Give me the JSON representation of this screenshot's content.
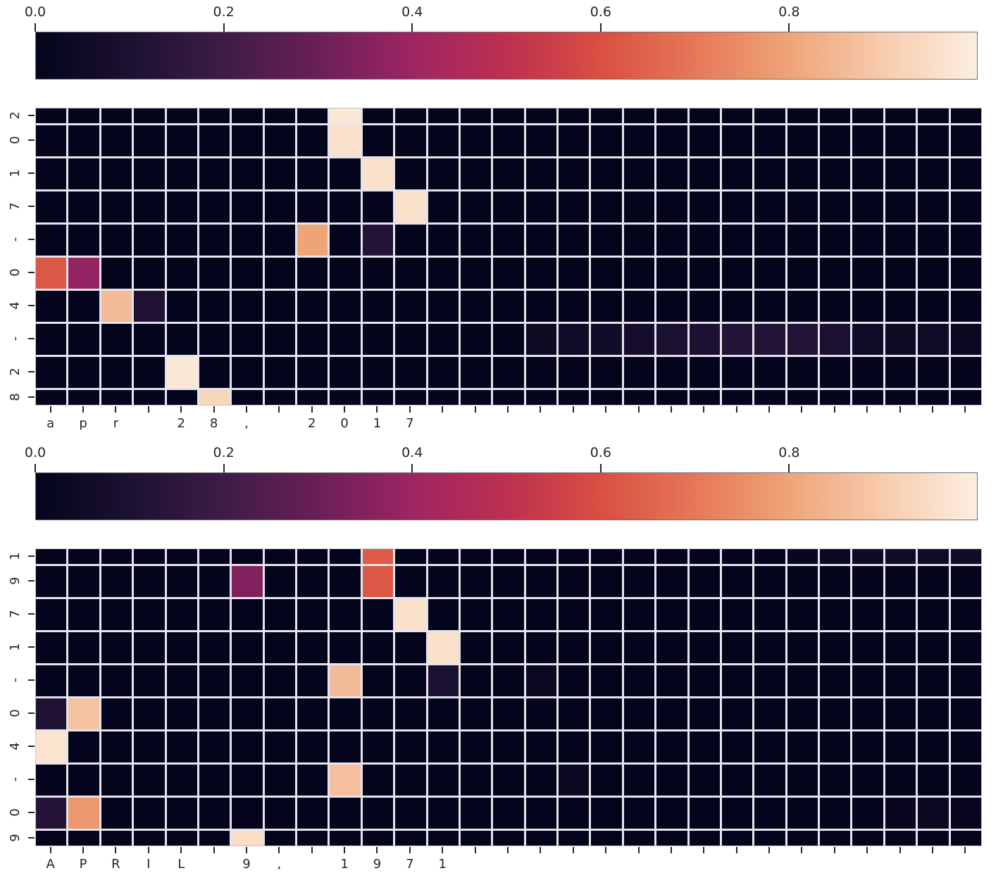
{
  "page": {
    "background": "#ffffff",
    "description": "Two character-level attention heatmaps with rocket colorbars"
  },
  "colormap": {
    "name": "rocket",
    "stops": [
      [
        0.0,
        "#04051C"
      ],
      [
        0.1,
        "#1C1131"
      ],
      [
        0.2,
        "#3E1C48"
      ],
      [
        0.3,
        "#6A1F57"
      ],
      [
        0.4,
        "#9E2563"
      ],
      [
        0.5,
        "#BD3050"
      ],
      [
        0.6,
        "#D94F41"
      ],
      [
        0.7,
        "#E57858"
      ],
      [
        0.8,
        "#EFA478"
      ],
      [
        0.9,
        "#F6CBAC"
      ],
      [
        1.0,
        "#FBEFE0"
      ]
    ]
  },
  "chart_data": [
    {
      "type": "heatmap",
      "name": "attention-heatmap-1",
      "x_text": "apr 28, 2017",
      "y_text": "2017-04-28",
      "n_rows": 10,
      "n_cols": 29,
      "value_range": [
        0,
        1
      ],
      "colorbar": {
        "tick_labels": [
          "0.0",
          "0.2",
          "0.4",
          "0.6",
          "0.8"
        ],
        "tick_values": [
          0.0,
          0.2,
          0.4,
          0.6,
          0.8
        ],
        "range": [
          0,
          1
        ],
        "position": "top"
      },
      "x_labels": [
        "a",
        "p",
        "r",
        " ",
        "2",
        "8",
        ",",
        " ",
        "2",
        "0",
        "1",
        "7",
        " ",
        " ",
        " ",
        " ",
        " ",
        " ",
        " ",
        " ",
        " ",
        " ",
        " ",
        " ",
        " ",
        " ",
        " ",
        " ",
        " "
      ],
      "y_labels": [
        "2",
        "0",
        "1",
        "7",
        "-",
        "0",
        "4",
        "-",
        "2",
        "8"
      ],
      "cells": [
        {
          "r": 0,
          "c": 9,
          "v": 0.98
        },
        {
          "r": 1,
          "c": 9,
          "v": 0.96
        },
        {
          "r": 2,
          "c": 10,
          "v": 0.96
        },
        {
          "r": 3,
          "c": 11,
          "v": 0.96
        },
        {
          "r": 4,
          "c": 8,
          "v": 0.8
        },
        {
          "r": 4,
          "c": 10,
          "v": 0.12
        },
        {
          "r": 5,
          "c": 0,
          "v": 0.62
        },
        {
          "r": 5,
          "c": 1,
          "v": 0.38
        },
        {
          "r": 6,
          "c": 2,
          "v": 0.86
        },
        {
          "r": 6,
          "c": 3,
          "v": 0.11
        },
        {
          "r": 7,
          "c": 15,
          "v": 0.04
        },
        {
          "r": 7,
          "c": 16,
          "v": 0.05
        },
        {
          "r": 7,
          "c": 17,
          "v": 0.06
        },
        {
          "r": 7,
          "c": 18,
          "v": 0.07
        },
        {
          "r": 7,
          "c": 19,
          "v": 0.09
        },
        {
          "r": 7,
          "c": 20,
          "v": 0.1
        },
        {
          "r": 7,
          "c": 21,
          "v": 0.12
        },
        {
          "r": 7,
          "c": 22,
          "v": 0.12
        },
        {
          "r": 7,
          "c": 23,
          "v": 0.12
        },
        {
          "r": 7,
          "c": 24,
          "v": 0.1
        },
        {
          "r": 7,
          "c": 25,
          "v": 0.05
        },
        {
          "r": 7,
          "c": 26,
          "v": 0.04
        },
        {
          "r": 7,
          "c": 27,
          "v": 0.05
        },
        {
          "r": 7,
          "c": 28,
          "v": 0.03
        },
        {
          "r": 8,
          "c": 4,
          "v": 0.98
        },
        {
          "r": 9,
          "c": 5,
          "v": 0.93
        }
      ]
    },
    {
      "type": "heatmap",
      "name": "attention-heatmap-2",
      "x_text": "APRIL 9, 1971",
      "y_text": "1971-04-09",
      "n_rows": 10,
      "n_cols": 29,
      "value_range": [
        0,
        1
      ],
      "colorbar": {
        "tick_labels": [
          "0.0",
          "0.2",
          "0.4",
          "0.6",
          "0.8"
        ],
        "tick_values": [
          0.0,
          0.2,
          0.4,
          0.6,
          0.8
        ],
        "range": [
          0,
          1
        ],
        "position": "top"
      },
      "x_labels": [
        "A",
        "P",
        "R",
        "I",
        "L",
        " ",
        "9",
        ",",
        " ",
        "1",
        "9",
        "7",
        "1",
        " ",
        " ",
        " ",
        " ",
        " ",
        " ",
        " ",
        " ",
        " ",
        " ",
        " ",
        " ",
        " ",
        " ",
        " ",
        " "
      ],
      "y_labels": [
        "1",
        "9",
        "7",
        "1",
        "-",
        "0",
        "4",
        "-",
        "0",
        "9"
      ],
      "cells": [
        {
          "r": 0,
          "c": 10,
          "v": 0.63
        },
        {
          "r": 0,
          "c": 23,
          "v": 0.02
        },
        {
          "r": 0,
          "c": 24,
          "v": 0.03
        },
        {
          "r": 0,
          "c": 25,
          "v": 0.04
        },
        {
          "r": 0,
          "c": 26,
          "v": 0.05
        },
        {
          "r": 0,
          "c": 27,
          "v": 0.05
        },
        {
          "r": 0,
          "c": 28,
          "v": 0.06
        },
        {
          "r": 1,
          "c": 6,
          "v": 0.34
        },
        {
          "r": 1,
          "c": 10,
          "v": 0.62
        },
        {
          "r": 2,
          "c": 11,
          "v": 0.96
        },
        {
          "r": 3,
          "c": 12,
          "v": 0.96
        },
        {
          "r": 4,
          "c": 9,
          "v": 0.86
        },
        {
          "r": 4,
          "c": 12,
          "v": 0.09
        },
        {
          "r": 4,
          "c": 15,
          "v": 0.03
        },
        {
          "r": 5,
          "c": 0,
          "v": 0.11
        },
        {
          "r": 5,
          "c": 1,
          "v": 0.88
        },
        {
          "r": 6,
          "c": 0,
          "v": 0.97
        },
        {
          "r": 7,
          "c": 9,
          "v": 0.87
        },
        {
          "r": 7,
          "c": 16,
          "v": 0.03
        },
        {
          "r": 8,
          "c": 0,
          "v": 0.13
        },
        {
          "r": 8,
          "c": 1,
          "v": 0.77
        },
        {
          "r": 8,
          "c": 26,
          "v": 0.02
        },
        {
          "r": 8,
          "c": 27,
          "v": 0.03
        },
        {
          "r": 8,
          "c": 28,
          "v": 0.02
        },
        {
          "r": 9,
          "c": 6,
          "v": 0.95
        }
      ]
    }
  ]
}
